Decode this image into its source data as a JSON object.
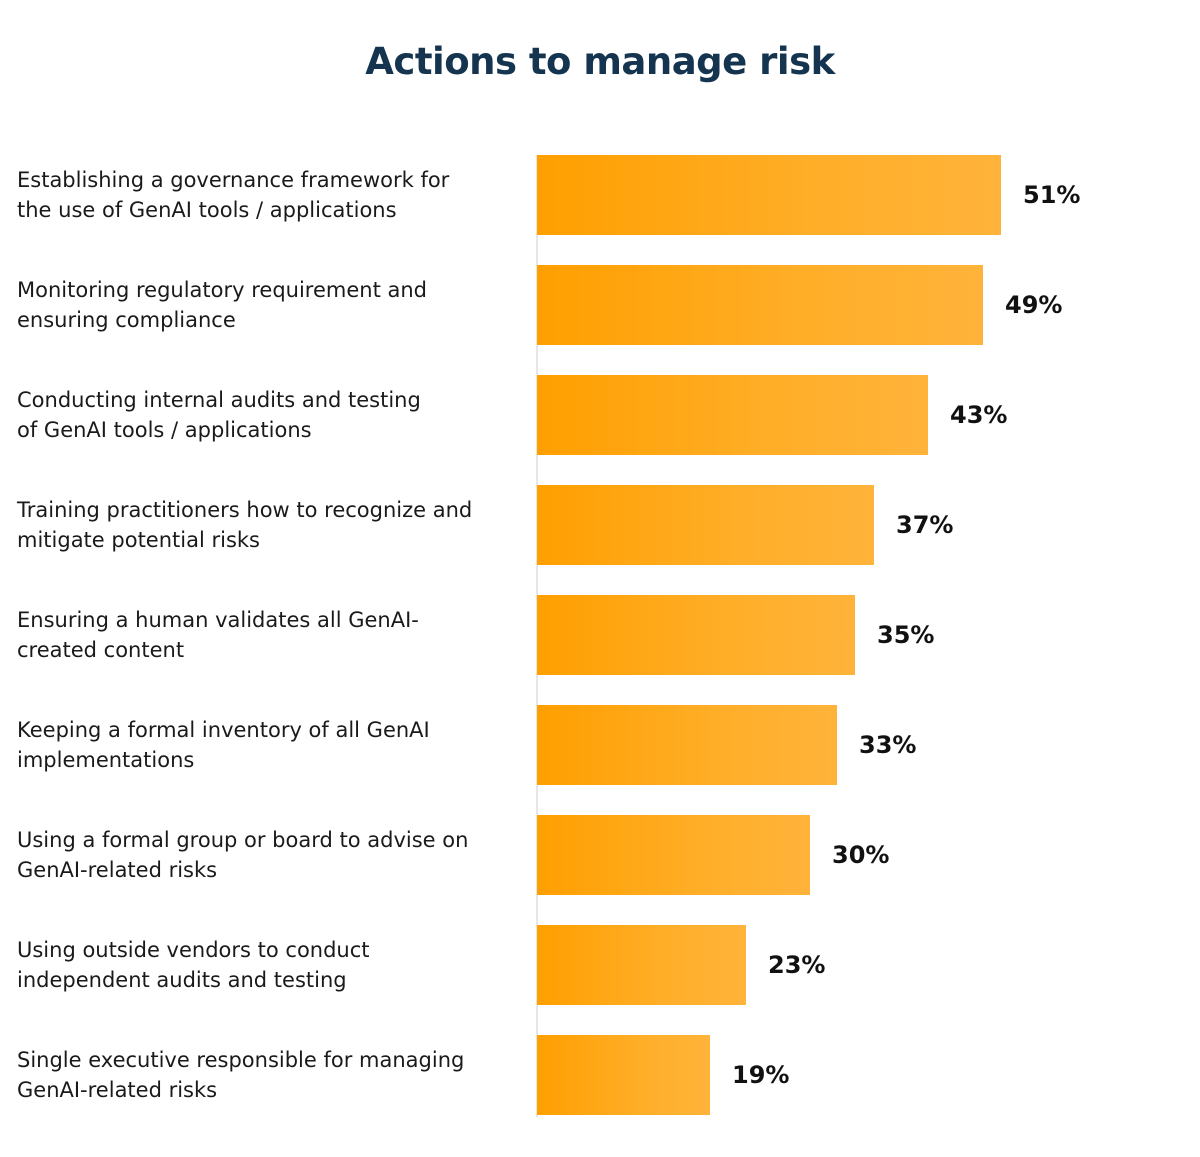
{
  "chart_data": {
    "type": "bar",
    "orientation": "horizontal",
    "title": "Actions to manage risk",
    "categories": [
      [
        "Establishing a governance framework for",
        "the use of GenAI tools / applications"
      ],
      [
        "Monitoring regulatory requirement and",
        "ensuring compliance"
      ],
      [
        "Conducting internal audits and testing",
        "of GenAI tools / applications"
      ],
      [
        "Training practitioners how to recognize and",
        "mitigate potential risks"
      ],
      [
        "Ensuring a human validates all GenAI-",
        "created content"
      ],
      [
        "Keeping a formal inventory of all GenAI",
        "implementations"
      ],
      [
        "Using a formal group or board to advise on",
        "GenAI-related risks"
      ],
      [
        "Using outside vendors to conduct",
        "independent audits and testing"
      ],
      [
        "Single executive responsible for managing",
        "GenAI-related risks"
      ]
    ],
    "values": [
      51,
      49,
      43,
      37,
      35,
      33,
      30,
      23,
      19
    ],
    "value_labels": [
      "51%",
      "49%",
      "43%",
      "37%",
      "35%",
      "33%",
      "30%",
      "23%",
      "19%"
    ],
    "unit": "%",
    "xlim": [
      0,
      100
    ],
    "grid": false,
    "legend": "none",
    "bar_color_start": "#ff9f00",
    "bar_color_end": "#ffb33a",
    "title_color": "#14344f"
  }
}
